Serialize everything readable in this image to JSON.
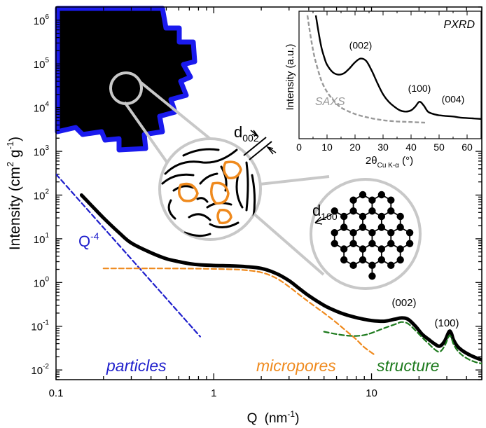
{
  "chart_data": {
    "type": "line",
    "title": "",
    "xlabel": "Q",
    "xlabel_unit": "(nm",
    "xlabel_unit_exp": "-1",
    "xlabel_unit_close": ")",
    "ylabel": "Intensity (cm",
    "ylabel_exp1": "2",
    "ylabel_mid": " g",
    "ylabel_exp2": "-1",
    "ylabel_close": ")",
    "xscale": "log",
    "yscale": "log",
    "xlim": [
      0.1,
      50
    ],
    "ylim": [
      0.006,
      2000000
    ],
    "x_ticks": [
      {
        "value": 0.1,
        "label": "0.1"
      },
      {
        "value": 1,
        "label": "1"
      },
      {
        "value": 10,
        "label": "10"
      }
    ],
    "y_ticks": [
      {
        "value": 0.01,
        "base": "10",
        "exp": "-2"
      },
      {
        "value": 0.1,
        "base": "10",
        "exp": "-1"
      },
      {
        "value": 1,
        "base": "10",
        "exp": "0"
      },
      {
        "value": 10,
        "base": "10",
        "exp": "1"
      },
      {
        "value": 100,
        "base": "10",
        "exp": "2"
      },
      {
        "value": 1000,
        "base": "10",
        "exp": "3"
      },
      {
        "value": 10000,
        "base": "10",
        "exp": "4"
      },
      {
        "value": 100000,
        "base": "10",
        "exp": "5"
      },
      {
        "value": 1000000,
        "base": "10",
        "exp": "6"
      }
    ],
    "series": [
      {
        "role": "measured",
        "color": "#000000",
        "style": "solid",
        "points": [
          [
            0.145,
            100
          ],
          [
            0.17,
            55
          ],
          [
            0.2,
            30
          ],
          [
            0.25,
            14
          ],
          [
            0.3,
            8
          ],
          [
            0.4,
            4.8
          ],
          [
            0.5,
            3.5
          ],
          [
            0.6,
            3.0
          ],
          [
            0.7,
            2.7
          ],
          [
            0.8,
            2.55
          ],
          [
            1.0,
            2.45
          ],
          [
            1.3,
            2.4
          ],
          [
            1.6,
            2.3
          ],
          [
            2.0,
            2.1
          ],
          [
            2.5,
            1.6
          ],
          [
            3.0,
            1.1
          ],
          [
            3.5,
            0.72
          ],
          [
            4.0,
            0.5
          ],
          [
            5.0,
            0.3
          ],
          [
            6.0,
            0.22
          ],
          [
            7.0,
            0.18
          ],
          [
            8.5,
            0.15
          ],
          [
            10,
            0.135
          ],
          [
            12,
            0.13
          ],
          [
            14,
            0.145
          ],
          [
            15.5,
            0.155
          ],
          [
            17,
            0.145
          ],
          [
            19,
            0.1
          ],
          [
            21,
            0.065
          ],
          [
            23,
            0.05
          ],
          [
            25,
            0.04
          ],
          [
            27,
            0.035
          ],
          [
            29,
            0.045
          ],
          [
            31,
            0.075
          ],
          [
            32,
            0.07
          ],
          [
            33,
            0.05
          ],
          [
            35,
            0.035
          ],
          [
            38,
            0.027
          ],
          [
            42,
            0.022
          ],
          [
            46,
            0.019
          ],
          [
            50,
            0.017
          ]
        ]
      },
      {
        "role": "particles",
        "color": "#1f1fcc",
        "style": "dashed",
        "points": [
          [
            0.1,
            300
          ],
          [
            0.82,
            0.058
          ]
        ]
      },
      {
        "role": "micropores",
        "color": "#ef8a1e",
        "style": "dashed",
        "points": [
          [
            0.2,
            2.1
          ],
          [
            0.5,
            2.1
          ],
          [
            1.0,
            2.05
          ],
          [
            1.5,
            1.95
          ],
          [
            2.0,
            1.7
          ],
          [
            2.5,
            1.25
          ],
          [
            3.0,
            0.8
          ],
          [
            3.5,
            0.52
          ],
          [
            4.0,
            0.36
          ],
          [
            5.0,
            0.2
          ],
          [
            6.0,
            0.12
          ],
          [
            7.0,
            0.075
          ],
          [
            8.0,
            0.05
          ],
          [
            9.0,
            0.033
          ],
          [
            10.5,
            0.022
          ]
        ]
      },
      {
        "role": "structure",
        "color": "#1d7a1d",
        "style": "dashed",
        "points": [
          [
            5,
            0.075
          ],
          [
            6,
            0.066
          ],
          [
            7,
            0.061
          ],
          [
            8,
            0.06
          ],
          [
            9,
            0.063
          ],
          [
            10,
            0.07
          ],
          [
            11.5,
            0.085
          ],
          [
            13,
            0.1
          ],
          [
            14.5,
            0.115
          ],
          [
            15.5,
            0.125
          ],
          [
            17,
            0.115
          ],
          [
            19,
            0.08
          ],
          [
            21,
            0.055
          ],
          [
            23,
            0.04
          ],
          [
            25,
            0.03
          ],
          [
            27,
            0.026
          ],
          [
            29,
            0.035
          ],
          [
            31,
            0.06
          ],
          [
            32,
            0.055
          ],
          [
            33,
            0.04
          ],
          [
            35,
            0.028
          ],
          [
            38,
            0.021
          ],
          [
            42,
            0.017
          ],
          [
            46,
            0.015
          ],
          [
            50,
            0.014
          ]
        ]
      }
    ],
    "annotations": {
      "q4": {
        "base": "Q",
        "exp": "-4"
      },
      "particles": "particles",
      "micropores": "micropores",
      "structure": "structure",
      "peak_002": "(002)",
      "peak_100": "(100)"
    },
    "inset": {
      "type": "line",
      "title": "PXRD",
      "xlabel_pre": "2θ",
      "xlabel_sub": "Cu K-α",
      "xlabel_post": " (°)",
      "ylabel": "Intensity (a.u.)",
      "xlim": [
        0,
        65
      ],
      "x_ticks": [
        0,
        10,
        20,
        30,
        40,
        50,
        60
      ],
      "saxs_label": "SAXS",
      "peak_labels": [
        {
          "label": "(002)",
          "x": 22
        },
        {
          "label": "(100)",
          "x": 43
        },
        {
          "label": "(004)",
          "x": 55
        }
      ],
      "series": [
        {
          "role": "pxrd",
          "color": "#000000",
          "style": "solid",
          "points": [
            [
              6,
              1.0
            ],
            [
              7,
              0.86
            ],
            [
              8,
              0.74
            ],
            [
              9,
              0.66
            ],
            [
              10,
              0.6
            ],
            [
              12,
              0.54
            ],
            [
              14,
              0.52
            ],
            [
              16,
              0.53
            ],
            [
              18,
              0.57
            ],
            [
              20,
              0.62
            ],
            [
              22,
              0.65
            ],
            [
              24,
              0.63
            ],
            [
              26,
              0.55
            ],
            [
              28,
              0.45
            ],
            [
              30,
              0.36
            ],
            [
              32,
              0.3
            ],
            [
              34,
              0.26
            ],
            [
              36,
              0.23
            ],
            [
              38,
              0.22
            ],
            [
              40,
              0.23
            ],
            [
              41.5,
              0.26
            ],
            [
              43,
              0.3
            ],
            [
              44.5,
              0.27
            ],
            [
              46,
              0.22
            ],
            [
              48,
              0.2
            ],
            [
              50,
              0.19
            ],
            [
              52,
              0.185
            ],
            [
              55,
              0.18
            ],
            [
              58,
              0.17
            ],
            [
              62,
              0.165
            ],
            [
              65,
              0.16
            ]
          ]
        },
        {
          "role": "saxs",
          "color": "#999999",
          "style": "dashed",
          "points": [
            [
              3,
              1.0
            ],
            [
              4,
              0.85
            ],
            [
              5,
              0.72
            ],
            [
              6,
              0.62
            ],
            [
              8,
              0.47
            ],
            [
              10,
              0.38
            ],
            [
              12,
              0.32
            ],
            [
              14,
              0.27
            ],
            [
              16,
              0.24
            ],
            [
              20,
              0.2
            ],
            [
              25,
              0.17
            ],
            [
              30,
              0.15
            ],
            [
              35,
              0.14
            ],
            [
              40,
              0.135
            ],
            [
              45,
              0.13
            ]
          ]
        }
      ]
    },
    "illustration": {
      "d002": {
        "base": "d",
        "sub": "002"
      },
      "d100": {
        "base": "d",
        "sub": "100"
      }
    }
  }
}
